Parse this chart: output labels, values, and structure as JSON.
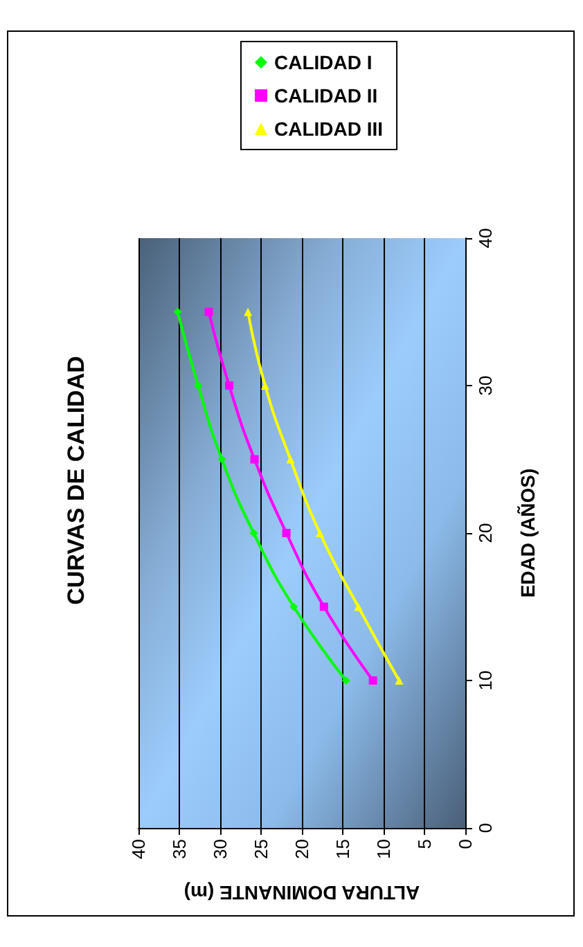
{
  "chart_data": {
    "type": "line",
    "title": "CURVAS DE CALIDAD",
    "xlabel": "ALTURA DOMINANTE (m)",
    "ylabel": "EDAD (AÑOS)",
    "series": [
      {
        "name": "CALIDAD I",
        "color": "#00ff00",
        "marker": "diamond",
        "x": [
          14.6,
          21.0,
          25.9,
          29.8,
          32.7,
          35.2
        ],
        "values": [
          10,
          15,
          20,
          25,
          30,
          35
        ]
      },
      {
        "name": "CALIDAD II",
        "color": "#ff00ff",
        "marker": "square",
        "x": [
          11.3,
          17.3,
          21.9,
          25.8,
          28.9,
          31.4
        ],
        "values": [
          10,
          15,
          20,
          25,
          30,
          35
        ]
      },
      {
        "name": "CALIDAD III",
        "color": "#ffff00",
        "marker": "triangle",
        "x": [
          8.1,
          13.1,
          17.8,
          21.4,
          24.5,
          26.6
        ],
        "values": [
          10,
          15,
          20,
          25,
          30,
          35
        ]
      }
    ],
    "xlim": [
      40,
      0
    ],
    "xticks": [
      40,
      35,
      30,
      25,
      20,
      15,
      10,
      5,
      0
    ],
    "ylim": [
      0,
      40
    ],
    "yticks": [
      0,
      10,
      20,
      30,
      40
    ],
    "grid": "x",
    "legend": "top right",
    "line_style": "solid"
  }
}
